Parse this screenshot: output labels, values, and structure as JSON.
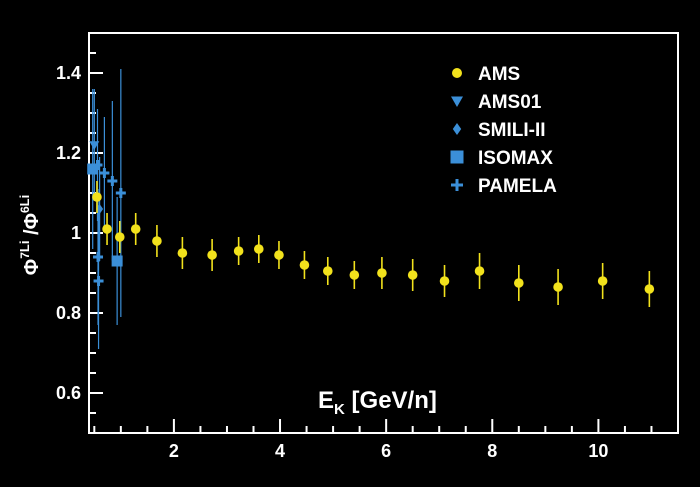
{
  "chart_data": {
    "type": "scatter",
    "title": "",
    "ylabel": {
      "prefix": "Φ",
      "num_sup": "7",
      "num_base": "Li",
      "mid": " /Φ",
      "den_sup": "6",
      "den_base": "Li"
    },
    "xlabel": {
      "base": "E",
      "sub": "K",
      "rest": " [GeV/n]"
    },
    "xlim": [
      0.4,
      11.5
    ],
    "ylim": [
      0.5,
      1.5
    ],
    "x_ticks": [
      2,
      4,
      6,
      8,
      10
    ],
    "x_tick_labels": [
      "2",
      "4",
      "6",
      "8",
      "10"
    ],
    "y_ticks": [
      0.6,
      0.8,
      1.0,
      1.2,
      1.4
    ],
    "y_tick_labels": [
      "0.6",
      "0.8",
      "1",
      "1.2",
      "1.4"
    ],
    "grid": false,
    "legend_position": "top-right",
    "series": [
      {
        "name": "AMS",
        "marker": "circle",
        "color": "#f2e21c",
        "points": [
          {
            "x": 0.55,
            "y": 1.09,
            "err": 0.04
          },
          {
            "x": 0.74,
            "y": 1.01,
            "err": 0.04
          },
          {
            "x": 0.98,
            "y": 0.99,
            "err": 0.04
          },
          {
            "x": 1.28,
            "y": 1.01,
            "err": 0.04
          },
          {
            "x": 1.68,
            "y": 0.98,
            "err": 0.04
          },
          {
            "x": 2.16,
            "y": 0.95,
            "err": 0.04
          },
          {
            "x": 2.72,
            "y": 0.945,
            "err": 0.04
          },
          {
            "x": 3.22,
            "y": 0.955,
            "err": 0.035
          },
          {
            "x": 3.6,
            "y": 0.96,
            "err": 0.035
          },
          {
            "x": 3.98,
            "y": 0.945,
            "err": 0.035
          },
          {
            "x": 4.46,
            "y": 0.92,
            "err": 0.035
          },
          {
            "x": 4.9,
            "y": 0.905,
            "err": 0.035
          },
          {
            "x": 5.4,
            "y": 0.895,
            "err": 0.035
          },
          {
            "x": 5.92,
            "y": 0.9,
            "err": 0.04
          },
          {
            "x": 6.5,
            "y": 0.895,
            "err": 0.04
          },
          {
            "x": 7.1,
            "y": 0.88,
            "err": 0.04
          },
          {
            "x": 7.76,
            "y": 0.905,
            "err": 0.045
          },
          {
            "x": 8.5,
            "y": 0.875,
            "err": 0.045
          },
          {
            "x": 9.24,
            "y": 0.865,
            "err": 0.045
          },
          {
            "x": 10.08,
            "y": 0.88,
            "err": 0.045
          },
          {
            "x": 10.96,
            "y": 0.86,
            "err": 0.045
          }
        ]
      },
      {
        "name": "AMS01",
        "marker": "triangle-down",
        "color": "#3b8fd8",
        "points": [
          {
            "x": 0.5,
            "y": 1.22,
            "err": 0.14
          }
        ]
      },
      {
        "name": "SMILI-II",
        "marker": "diamond",
        "color": "#3b8fd8",
        "points": [
          {
            "x": 0.6,
            "y": 1.06,
            "err": 0.13
          }
        ]
      },
      {
        "name": "ISOMAX",
        "marker": "square",
        "color": "#3b8fd8",
        "points": [
          {
            "x": 0.47,
            "y": 1.16,
            "err": 0.2
          },
          {
            "x": 0.93,
            "y": 0.93,
            "err": 0.16
          }
        ]
      },
      {
        "name": "PAMELA",
        "marker": "plus",
        "color": "#3b8fd8",
        "points": [
          {
            "x": 0.56,
            "y": 1.17,
            "err": 0.14
          },
          {
            "x": 0.57,
            "y": 0.94,
            "err": 0.17
          },
          {
            "x": 0.58,
            "y": 0.88,
            "err": 0.17
          },
          {
            "x": 0.69,
            "y": 1.15,
            "err": 0.14
          },
          {
            "x": 0.84,
            "y": 1.13,
            "err": 0.2
          },
          {
            "x": 1.0,
            "y": 1.1,
            "err": 0.31
          }
        ]
      }
    ]
  }
}
